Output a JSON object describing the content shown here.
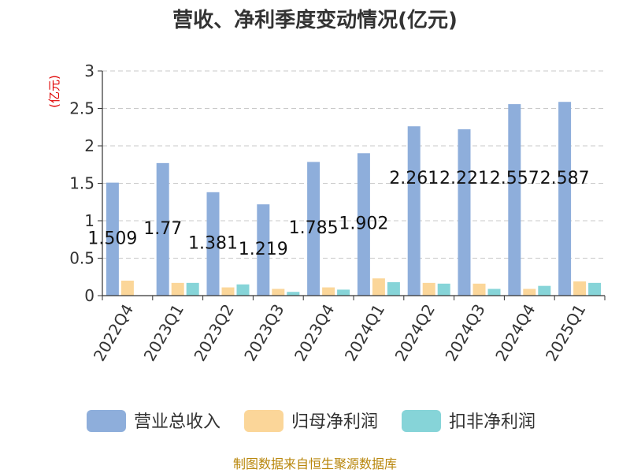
{
  "chart_data": {
    "type": "bar",
    "title": "营收、净利季度变动情况(亿元)",
    "ylabel": "(亿元)",
    "xlabel": "",
    "ylim": [
      0,
      3
    ],
    "yticks": [
      "0",
      "0.5",
      "1",
      "1.5",
      "2",
      "2.5",
      "3"
    ],
    "grid": true,
    "legend_position": "bottom",
    "categories": [
      "2022Q4",
      "2023Q1",
      "2023Q2",
      "2023Q3",
      "2023Q4",
      "2024Q1",
      "2024Q2",
      "2024Q3",
      "2024Q4",
      "2025Q1"
    ],
    "series": [
      {
        "name": "营业总收入",
        "color": "#8eaedb",
        "values": [
          1.509,
          1.77,
          1.381,
          1.219,
          1.785,
          1.902,
          2.261,
          2.221,
          2.557,
          2.587
        ]
      },
      {
        "name": "归母净利润",
        "color": "#fbd699",
        "values": [
          0.2,
          0.17,
          0.11,
          0.09,
          0.11,
          0.23,
          0.17,
          0.16,
          0.09,
          0.19
        ]
      },
      {
        "name": "扣非净利润",
        "color": "#86d4d8",
        "values": [
          0.0,
          0.17,
          0.15,
          0.05,
          0.08,
          0.18,
          0.16,
          0.09,
          0.13,
          0.17
        ]
      }
    ],
    "data_labels": [
      "1.509",
      "1.77",
      "1.381",
      "1.219",
      "1.785",
      "1.902",
      "2.261",
      "2.221",
      "2.557",
      "2.587"
    ]
  },
  "source": "制图数据来自恒生聚源数据库"
}
